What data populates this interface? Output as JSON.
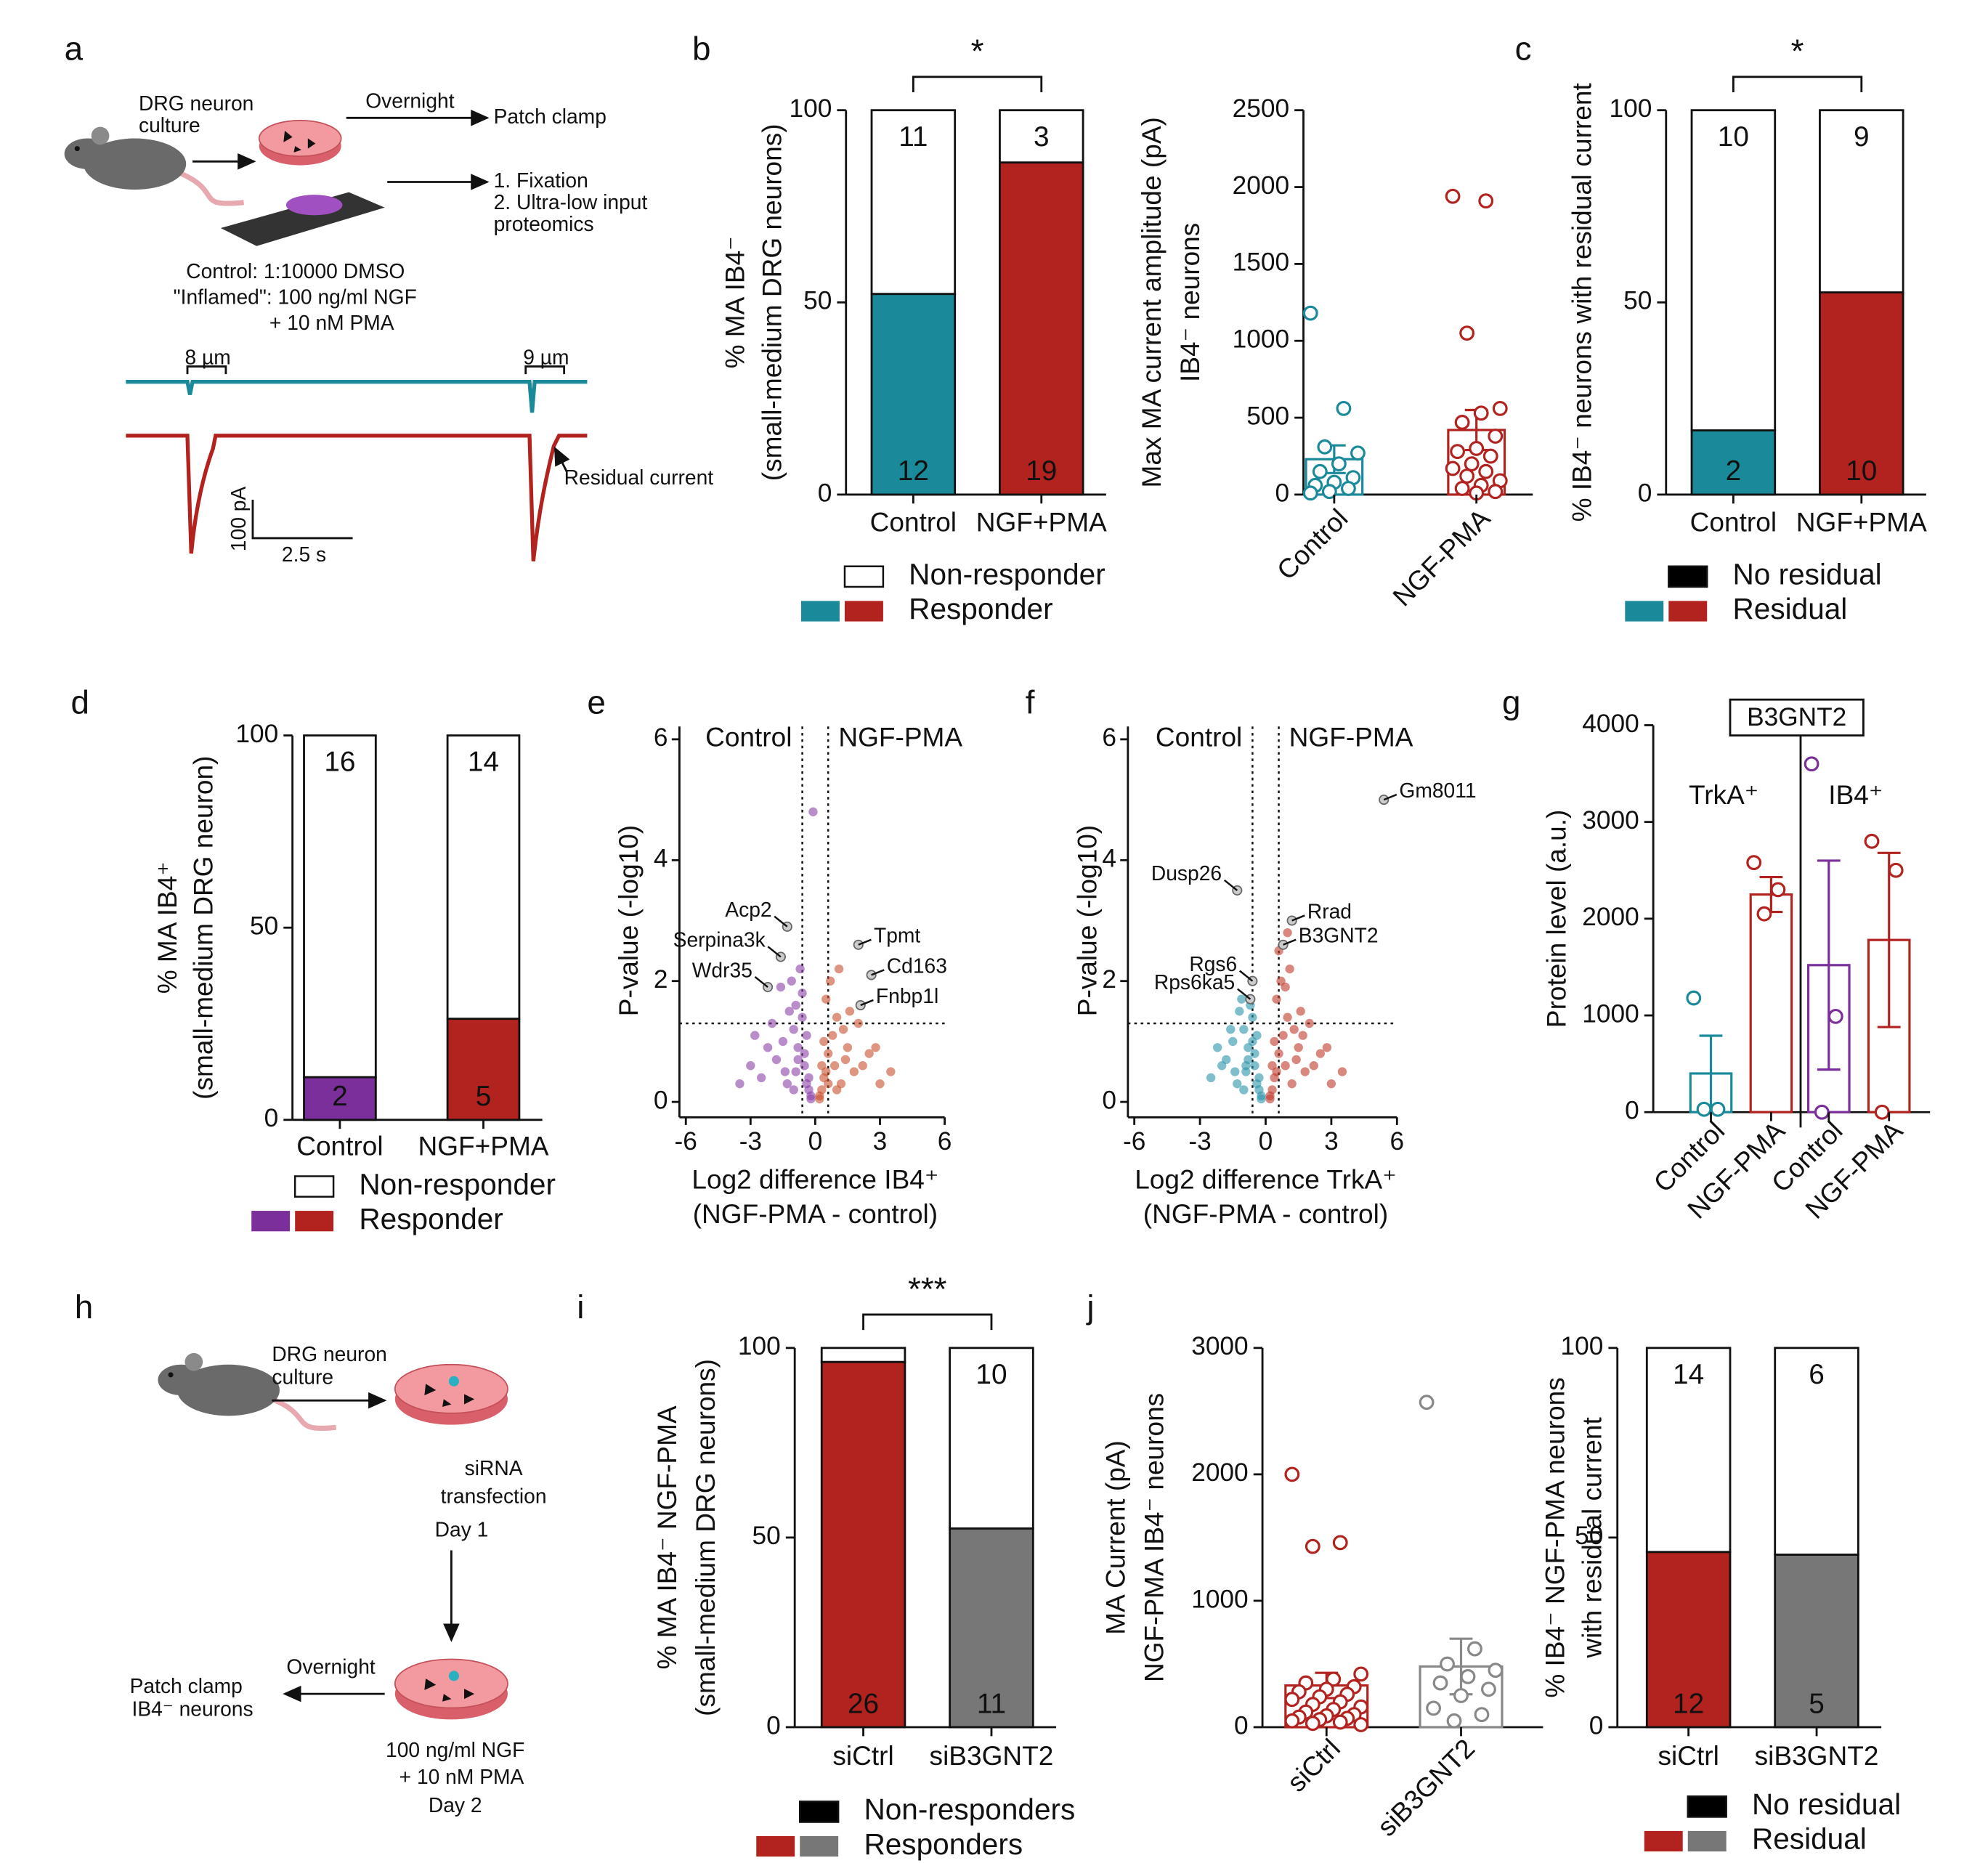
{
  "figure": {
    "panels": [
      "a",
      "b",
      "c",
      "d",
      "e",
      "f",
      "g",
      "h",
      "i",
      "j"
    ],
    "schematic_a": {
      "culture": [
        "DRG neuron",
        "culture"
      ],
      "overnight": "Overnight",
      "patch": "Patch clamp",
      "fixation": [
        "1. Fixation",
        "2. Ultra-low input",
        "proteomics"
      ],
      "conditions": [
        "Control: 1:10000 DMSO",
        "\"Inflamed\": 100 ng/ml NGF",
        "+ 10 nM PMA"
      ],
      "steps": [
        "8 µm",
        "9 µm"
      ],
      "residual": "Residual current",
      "scale": [
        "100 pA",
        "2.5 s"
      ]
    },
    "schematic_h": {
      "culture": [
        "DRG neuron",
        "culture"
      ],
      "transfection": [
        "siRNA",
        "transfection",
        "Day 1"
      ],
      "overnight": "Overnight",
      "patch": [
        "Patch clamp",
        "IB4⁻ neurons"
      ],
      "treatment": [
        "100 ng/ml NGF",
        "+ 10 nM PMA",
        "Day 2"
      ]
    }
  },
  "chart_data": [
    {
      "type": "stacked_bar",
      "ylabel": [
        "% MA IB4⁻",
        "(small-medium DRG neurons)"
      ],
      "categories": [
        "Control",
        "NGF+PMA"
      ],
      "ylim": [
        0,
        100
      ],
      "yticks": [
        0,
        50,
        100
      ],
      "significance": "*",
      "series": [
        {
          "name": "Responder",
          "colors": [
            "#1a8a9a",
            "#b2221e"
          ],
          "values": [
            52.2,
            86.4
          ],
          "counts": [
            12,
            19
          ]
        },
        {
          "name": "Non-responder",
          "color": "#ffffff",
          "values": [
            47.8,
            13.6
          ],
          "counts": [
            11,
            3
          ]
        }
      ]
    },
    {
      "type": "bar_scatter",
      "ylabel": [
        "Max MA current amplitude (pA)",
        "IB4⁻ neurons"
      ],
      "categories": [
        "Control",
        "NGF-PMA"
      ],
      "colors": [
        "#1a8a9a",
        "#b2221e"
      ],
      "ylim": [
        0,
        2500
      ],
      "yticks": [
        0,
        500,
        1000,
        1500,
        2000,
        2500
      ],
      "values": [
        230,
        420
      ],
      "errors": [
        90,
        130
      ],
      "points": [
        [
          1180,
          560,
          310,
          270,
          200,
          150,
          110,
          80,
          60,
          40,
          20,
          10
        ],
        [
          1940,
          1910,
          1050,
          560,
          530,
          470,
          380,
          300,
          280,
          250,
          200,
          170,
          150,
          120,
          90,
          60,
          40,
          20,
          10
        ]
      ]
    },
    {
      "type": "stacked_bar",
      "ylabel": [
        "% IB4⁻ neurons with residual current"
      ],
      "categories": [
        "Control",
        "NGF+PMA"
      ],
      "ylim": [
        0,
        100
      ],
      "yticks": [
        0,
        50,
        100
      ],
      "significance": "*",
      "series": [
        {
          "name": "Residual",
          "colors": [
            "#1a8a9a",
            "#b2221e"
          ],
          "values": [
            16.7,
            52.6
          ],
          "counts": [
            2,
            10
          ]
        },
        {
          "name": "No residual",
          "color": "#ffffff",
          "legend_color": "#000000",
          "values": [
            83.3,
            47.4
          ],
          "counts": [
            10,
            9
          ]
        }
      ]
    },
    {
      "type": "stacked_bar",
      "ylabel": [
        "% MA IB4⁺",
        "(small-medium DRG neuron)"
      ],
      "categories": [
        "Control",
        "NGF+PMA"
      ],
      "ylim": [
        0,
        100
      ],
      "yticks": [
        0,
        50,
        100
      ],
      "series": [
        {
          "name": "Responder",
          "colors": [
            "#7b2f9a",
            "#b2221e"
          ],
          "values": [
            11.1,
            26.3
          ],
          "counts": [
            2,
            5
          ]
        },
        {
          "name": "Non-responder",
          "color": "#ffffff",
          "values": [
            88.9,
            73.7
          ],
          "counts": [
            16,
            14
          ]
        }
      ]
    },
    {
      "type": "volcano",
      "ylabel": "P-value (-log10)",
      "xlabel": [
        "Log2 difference IB4⁺",
        "(NGF-PMA - control)"
      ],
      "xlim": [
        -6,
        6
      ],
      "xticks": [
        -6,
        -3,
        0,
        3,
        6
      ],
      "ylim": [
        0,
        6
      ],
      "yticks": [
        0,
        2,
        4,
        6
      ],
      "thresholds": {
        "x": [
          -0.6,
          0.6
        ],
        "y": 1.3
      },
      "series": [
        {
          "name": "Control",
          "color": "#8a3fa6",
          "x": [
            -0.2,
            -0.4,
            -0.5,
            -0.8,
            -1.0,
            -1.2,
            -0.3,
            -0.6,
            -0.9,
            -1.5,
            -1.8,
            -2.0,
            -2.5,
            -3.0,
            -1.1,
            -0.7,
            -0.4,
            -1.3,
            -2.2,
            -0.5,
            -0.9,
            -1.6,
            -0.2,
            -0.3,
            -2.8,
            -1.0,
            -0.6,
            -1.4,
            -0.8,
            -3.5,
            -0.1
          ],
          "y": [
            0.1,
            0.3,
            0.6,
            0.9,
            1.2,
            1.5,
            0.2,
            1.8,
            0.5,
            1.0,
            0.7,
            1.3,
            0.4,
            0.6,
            2.0,
            2.2,
            1.1,
            0.3,
            0.9,
            0.8,
            1.6,
            1.9,
            0.05,
            0.4,
            1.1,
            0.2,
            1.4,
            0.5,
            0.7,
            0.3,
            4.8
          ]
        },
        {
          "name": "NGF-PMA",
          "color": "#c8502e",
          "x": [
            0.2,
            0.4,
            0.6,
            0.8,
            1.0,
            1.3,
            0.3,
            0.5,
            0.9,
            1.5,
            1.8,
            2.0,
            2.5,
            3.0,
            1.1,
            0.7,
            0.4,
            1.2,
            2.2,
            0.5,
            3.5,
            1.6,
            0.2,
            0.3,
            2.8,
            0.6,
            1.0,
            1.4
          ],
          "y": [
            0.1,
            0.4,
            0.8,
            1.1,
            1.4,
            1.2,
            0.2,
            1.7,
            0.6,
            0.9,
            0.5,
            1.3,
            0.8,
            0.3,
            2.2,
            2.0,
            1.0,
            0.3,
            0.6,
            0.5,
            0.5,
            1.5,
            0.05,
            0.6,
            0.9,
            0.3,
            0.2,
            0.7
          ]
        }
      ],
      "annotations": [
        {
          "label": "Acp2",
          "x": -1.3,
          "y": 2.9
        },
        {
          "label": "Serpina3k",
          "x": -1.6,
          "y": 2.4
        },
        {
          "label": "Wdr35",
          "x": -2.2,
          "y": 1.9
        },
        {
          "label": "Tpmt",
          "x": 2.0,
          "y": 2.6
        },
        {
          "label": "Cd163",
          "x": 2.6,
          "y": 2.1
        },
        {
          "label": "Fnbp1l",
          "x": 2.1,
          "y": 1.6
        }
      ]
    },
    {
      "type": "volcano",
      "ylabel": "P-value (-log10)",
      "xlabel": [
        "Log2 difference TrkA⁺",
        "(NGF-PMA - control)"
      ],
      "xlim": [
        -6,
        6
      ],
      "xticks": [
        -6,
        -3,
        0,
        3,
        6
      ],
      "ylim": [
        0,
        6
      ],
      "yticks": [
        0,
        2,
        4,
        6
      ],
      "thresholds": {
        "x": [
          -0.6,
          0.6
        ],
        "y": 1.3
      },
      "series": [
        {
          "name": "Control",
          "color": "#2a93a8",
          "x": [
            -0.2,
            -0.4,
            -0.5,
            -0.8,
            -1.0,
            -1.2,
            -0.3,
            -0.6,
            -0.9,
            -1.5,
            -1.8,
            -2.0,
            -2.5,
            -1.1,
            -0.7,
            -0.4,
            -1.3,
            -2.2,
            -0.5,
            -0.9,
            -1.6,
            -0.2,
            -0.3,
            -1.0,
            -0.6,
            -1.4,
            -0.8
          ],
          "y": [
            0.1,
            0.3,
            0.6,
            0.9,
            1.2,
            1.5,
            0.2,
            1.4,
            0.5,
            1.0,
            0.7,
            0.6,
            0.4,
            1.7,
            1.6,
            1.1,
            0.3,
            0.9,
            0.8,
            0.6,
            1.2,
            0.05,
            0.4,
            0.2,
            1.0,
            0.5,
            0.7
          ]
        },
        {
          "name": "NGF-PMA",
          "color": "#c0392b",
          "x": [
            0.2,
            0.4,
            0.6,
            0.8,
            1.0,
            1.3,
            0.3,
            0.5,
            0.9,
            1.5,
            1.8,
            2.0,
            2.5,
            3.0,
            1.1,
            0.7,
            0.4,
            1.2,
            2.2,
            0.5,
            3.5,
            1.6,
            0.2,
            0.3,
            2.8,
            0.6,
            1.0,
            1.4,
            0.9,
            1.7
          ],
          "y": [
            0.1,
            0.4,
            0.8,
            1.1,
            1.4,
            1.2,
            0.2,
            1.7,
            0.6,
            0.9,
            0.5,
            1.3,
            0.8,
            0.3,
            2.2,
            2.0,
            1.0,
            0.3,
            0.6,
            0.5,
            0.5,
            1.5,
            0.05,
            0.6,
            0.9,
            2.5,
            2.8,
            0.7,
            1.9,
            1.1
          ]
        }
      ],
      "annotations": [
        {
          "label": "Gm8011",
          "x": 5.4,
          "y": 5.0
        },
        {
          "label": "Dusp26",
          "x": -1.3,
          "y": 3.5
        },
        {
          "label": "Rrad",
          "x": 1.2,
          "y": 3.0
        },
        {
          "label": "B3GNT2",
          "x": 0.8,
          "y": 2.6
        },
        {
          "label": "Rgs6",
          "x": -0.6,
          "y": 2.0
        },
        {
          "label": "Rps6ka5",
          "x": -0.7,
          "y": 1.7
        }
      ]
    },
    {
      "type": "bar_scatter",
      "ylabel": [
        "Protein level (a.u.)"
      ],
      "categories": [
        "Control",
        "NGF-PMA",
        "Control",
        "NGF-PMA"
      ],
      "colors": [
        "#1a8a9a",
        "#b2221e",
        "#7b2f9a",
        "#b2221e"
      ],
      "ylim": [
        0,
        4000
      ],
      "yticks": [
        0,
        1000,
        2000,
        3000,
        4000
      ],
      "values": [
        400,
        2250,
        1520,
        1780
      ],
      "errors": [
        390,
        180,
        1080,
        900
      ],
      "points": [
        [
          1180,
          30,
          30
        ],
        [
          2580,
          2300,
          2050
        ],
        [
          3600,
          990,
          0
        ],
        [
          2800,
          2500,
          0
        ]
      ],
      "gene": "B3GNT2",
      "groups": [
        "TrkA⁺",
        "IB4⁺"
      ]
    },
    {
      "type": "stacked_bar",
      "ylabel": [
        "% MA IB4⁻ NGF-PMA",
        "(small-medium DRG neurons)"
      ],
      "categories": [
        "siCtrl",
        "siB3GNT2"
      ],
      "ylim": [
        0,
        100
      ],
      "yticks": [
        0,
        50,
        100
      ],
      "significance": "***",
      "series": [
        {
          "name": "Responders",
          "colors": [
            "#b2221e",
            "#777777"
          ],
          "values": [
            96.3,
            52.4
          ],
          "counts": [
            26,
            11
          ]
        },
        {
          "name": "Non-responders",
          "color": "#ffffff",
          "legend_color": "#000000",
          "values": [
            3.7,
            47.6
          ],
          "counts": [
            null,
            10
          ]
        }
      ]
    },
    {
      "type": "bar_scatter",
      "ylabel": [
        "MA Current (pA)",
        "NGF-PMA IB4⁻ neurons"
      ],
      "categories": [
        "siCtrl",
        "siB3GNT2"
      ],
      "colors": [
        "#b2221e",
        "#888888"
      ],
      "ylim": [
        0,
        3000
      ],
      "yticks": [
        0,
        1000,
        2000,
        3000
      ],
      "values": [
        330,
        480
      ],
      "errors": [
        100,
        220
      ],
      "points": [
        [
          2000,
          1460,
          1430,
          420,
          380,
          350,
          320,
          300,
          280,
          260,
          240,
          220,
          200,
          180,
          160,
          140,
          120,
          100,
          90,
          80,
          70,
          60,
          50,
          40,
          30,
          20
        ],
        [
          2570,
          620,
          500,
          450,
          400,
          350,
          300,
          250,
          150,
          100,
          50
        ]
      ]
    },
    {
      "type": "stacked_bar",
      "ylabel": [
        "% IB4⁻ NGF-PMA neurons",
        "with residual current"
      ],
      "categories": [
        "siCtrl",
        "siB3GNT2"
      ],
      "ylim": [
        0,
        100
      ],
      "yticks": [
        0,
        50,
        100
      ],
      "series": [
        {
          "name": "Residual",
          "colors": [
            "#b2221e",
            "#777777"
          ],
          "values": [
            46.2,
            45.5
          ],
          "counts": [
            12,
            5
          ]
        },
        {
          "name": "No residual",
          "color": "#ffffff",
          "legend_color": "#000000",
          "values": [
            53.8,
            54.5
          ],
          "counts": [
            14,
            6
          ]
        }
      ]
    }
  ]
}
